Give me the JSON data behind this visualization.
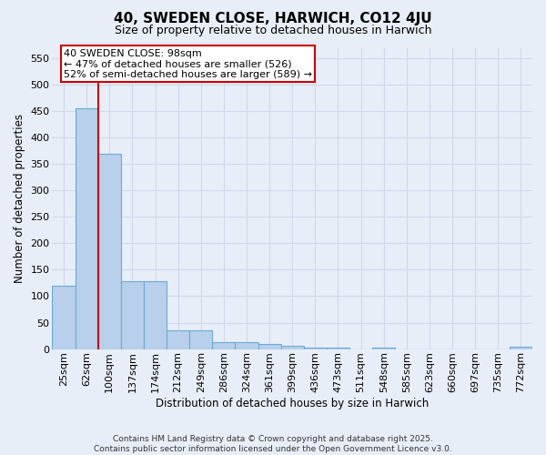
{
  "title": "40, SWEDEN CLOSE, HARWICH, CO12 4JU",
  "subtitle": "Size of property relative to detached houses in Harwich",
  "xlabel": "Distribution of detached houses by size in Harwich",
  "ylabel": "Number of detached properties",
  "footer_line1": "Contains HM Land Registry data © Crown copyright and database right 2025.",
  "footer_line2": "Contains public sector information licensed under the Open Government Licence v3.0.",
  "categories": [
    "25sqm",
    "62sqm",
    "100sqm",
    "137sqm",
    "174sqm",
    "212sqm",
    "249sqm",
    "286sqm",
    "324sqm",
    "361sqm",
    "399sqm",
    "436sqm",
    "473sqm",
    "511sqm",
    "548sqm",
    "585sqm",
    "623sqm",
    "660sqm",
    "697sqm",
    "735sqm",
    "772sqm"
  ],
  "bar_heights": [
    120,
    455,
    370,
    128,
    128,
    35,
    35,
    13,
    13,
    9,
    6,
    2,
    3,
    0,
    3,
    0,
    0,
    0,
    0,
    0,
    5
  ],
  "bar_color": "#b8d0eb",
  "bar_edge_color": "#6aaad4",
  "vline_x": 1.5,
  "vline_color": "#cc0000",
  "annotation_text": "40 SWEDEN CLOSE: 98sqm\n← 47% of detached houses are smaller (526)\n52% of semi-detached houses are larger (589) →",
  "annotation_box_color": "#cc0000",
  "annotation_fill_color": "#ffffff",
  "background_color": "#e8eef8",
  "grid_color": "#d0d8ea",
  "ylim": [
    0,
    570
  ],
  "yticks": [
    0,
    50,
    100,
    150,
    200,
    250,
    300,
    350,
    400,
    450,
    500,
    550
  ],
  "title_fontsize": 11,
  "subtitle_fontsize": 9,
  "axis_label_fontsize": 8.5,
  "tick_fontsize": 8,
  "annotation_fontsize": 8,
  "footer_fontsize": 6.5
}
